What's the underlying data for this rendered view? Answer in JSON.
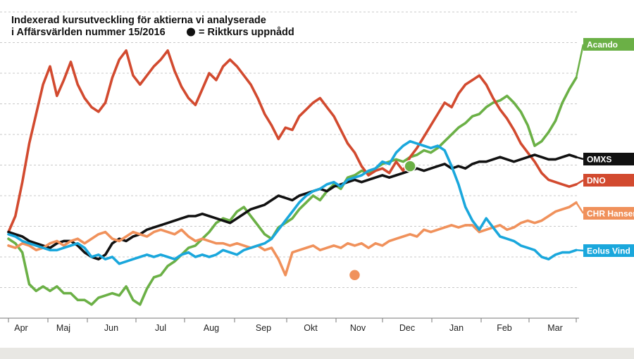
{
  "chart_data": {
    "type": "line",
    "title": [
      "Indexerad kursutveckling för aktierna vi analyserade",
      "i Affärsvärlden nummer 15/2016"
    ],
    "legend_marker_label": "= Riktkurs uppnådd",
    "x_labels": [
      "Apr",
      "Maj",
      "Jun",
      "Jul",
      "Aug",
      "Sep",
      "Okt",
      "Nov",
      "Dec",
      "Jan",
      "Feb",
      "Mar"
    ],
    "grid": "horizontal dashed",
    "series": [
      {
        "name": "Acando",
        "color": "#6bb046",
        "values": [
          100,
          98,
          94,
          80,
          77,
          79,
          77,
          79,
          76,
          76,
          73,
          73,
          71,
          74,
          75,
          76,
          75,
          79,
          73,
          71,
          78,
          83,
          84,
          88,
          90,
          93,
          96,
          97,
          100,
          103,
          107,
          109,
          108,
          112,
          114,
          110,
          106,
          102,
          100,
          105,
          107,
          109,
          113,
          116,
          119,
          117,
          121,
          124,
          122,
          127,
          128,
          130,
          129,
          131,
          133,
          134,
          135,
          134,
          136,
          137,
          139,
          138,
          140,
          143,
          146,
          149,
          151,
          154,
          155,
          158,
          160,
          161,
          163,
          160,
          156,
          150,
          141,
          143,
          147,
          152,
          160,
          166,
          171
        ]
      },
      {
        "name": "DNO",
        "color": "#d24a2f",
        "values": [
          103,
          110,
          125,
          142,
          155,
          168,
          176,
          163,
          170,
          178,
          168,
          162,
          158,
          156,
          160,
          171,
          179,
          183,
          172,
          168,
          172,
          176,
          179,
          183,
          174,
          167,
          162,
          159,
          166,
          173,
          170,
          176,
          179,
          176,
          172,
          168,
          162,
          155,
          150,
          144,
          149,
          148,
          154,
          157,
          160,
          162,
          158,
          154,
          148,
          142,
          138,
          132,
          128,
          130,
          131,
          129,
          134,
          130,
          136,
          140,
          145,
          150,
          155,
          160,
          158,
          164,
          168,
          170,
          172,
          168,
          162,
          157,
          153,
          148,
          142,
          138,
          134,
          129,
          126,
          125,
          124,
          123,
          124
        ]
      },
      {
        "name": "OMXS",
        "color": "#111111",
        "values": [
          103,
          102,
          101,
          99,
          98,
          97,
          96,
          98,
          99,
          99,
          97,
          94,
          92,
          91,
          93,
          98,
          100,
          99,
          101,
          102,
          104,
          105,
          106,
          107,
          108,
          109,
          110,
          110,
          111,
          110,
          109,
          108,
          107,
          109,
          111,
          113,
          114,
          115,
          117,
          119,
          118,
          117,
          119,
          120,
          121,
          122,
          121,
          123,
          124,
          125,
          126,
          125,
          126,
          127,
          128,
          127,
          128,
          129,
          130,
          131,
          130,
          131,
          132,
          133,
          131,
          132,
          131,
          133,
          134,
          134,
          135,
          136,
          135,
          134,
          135,
          136,
          137,
          136,
          135,
          135,
          136,
          137,
          136
        ]
      },
      {
        "name": "CHR Hansen",
        "color": "#f0915b",
        "values": [
          97,
          96,
          98,
          97,
          95,
          96,
          98,
          99,
          97,
          99,
          100,
          98,
          100,
          102,
          103,
          100,
          99,
          101,
          103,
          102,
          101,
          103,
          104,
          103,
          102,
          104,
          101,
          99,
          100,
          99,
          98,
          98,
          97,
          98,
          97,
          96,
          97,
          95,
          96,
          91,
          84,
          94,
          95,
          96,
          97,
          95,
          96,
          97,
          96,
          98,
          97,
          98,
          96,
          98,
          97,
          99,
          100,
          101,
          102,
          101,
          104,
          103,
          104,
          105,
          106,
          105,
          106,
          106,
          103,
          104,
          105,
          106,
          104,
          105,
          107,
          108,
          107,
          108,
          110,
          112,
          113,
          114,
          116
        ]
      },
      {
        "name": "Eolus Vind",
        "color": "#1aa7dc",
        "values": [
          102,
          101,
          99,
          98,
          97,
          96,
          95,
          95,
          96,
          97,
          98,
          96,
          92,
          93,
          91,
          92,
          89,
          90,
          91,
          92,
          93,
          92,
          93,
          92,
          91,
          93,
          94,
          92,
          93,
          92,
          93,
          95,
          94,
          93,
          95,
          96,
          97,
          98,
          100,
          104,
          108,
          112,
          116,
          119,
          121,
          122,
          124,
          125,
          123,
          126,
          127,
          128,
          130,
          131,
          134,
          133,
          138,
          141,
          143,
          142,
          141,
          140,
          141,
          139,
          132,
          124,
          114,
          108,
          104,
          109,
          105,
          101,
          100,
          99,
          97,
          96,
          95,
          92,
          91,
          93,
          94,
          94,
          95
        ]
      }
    ],
    "end_labels": [
      "Acando",
      "OMXS",
      "DNO",
      "CHR Hansen",
      "Eolus Vind"
    ],
    "target_markers": [
      {
        "series": "CHR Hansen",
        "month": "Nov",
        "value": 84
      },
      {
        "series": "Acando",
        "month": "Dec",
        "value": 132
      }
    ],
    "ylim": [
      65,
      200
    ]
  }
}
